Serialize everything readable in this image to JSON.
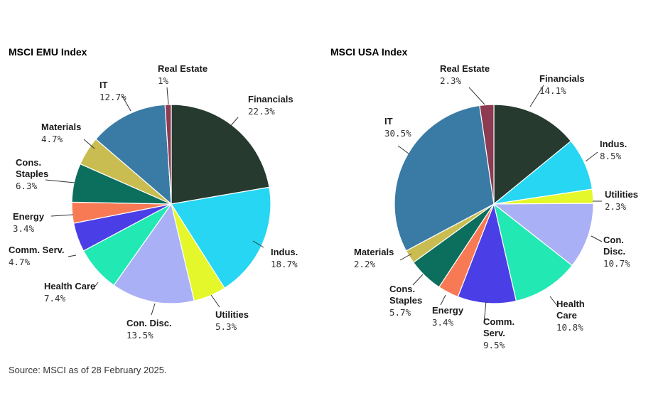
{
  "chart_data": [
    {
      "type": "pie",
      "title": "MSCI EMU Index",
      "slices": [
        {
          "name": "Financials",
          "lines": [
            "Financials"
          ],
          "value": 22.3,
          "label": "22.3%",
          "color": "#263a30"
        },
        {
          "name": "Indus.",
          "lines": [
            "Indus."
          ],
          "value": 18.7,
          "label": "18.7%",
          "color": "#26d6f2"
        },
        {
          "name": "Utilities",
          "lines": [
            "Utilities"
          ],
          "value": 5.3,
          "label": "5.3%",
          "color": "#e4f72a"
        },
        {
          "name": "Con. Disc.",
          "lines": [
            "Con. Disc."
          ],
          "value": 13.5,
          "label": "13.5%",
          "color": "#aab0f6"
        },
        {
          "name": "Health Care",
          "lines": [
            "Health Care"
          ],
          "value": 7.4,
          "label": "7.4%",
          "color": "#22e8b4"
        },
        {
          "name": "Comm. Serv.",
          "lines": [
            "Comm. Serv."
          ],
          "value": 4.7,
          "label": "4.7%",
          "color": "#4a3ee6"
        },
        {
          "name": "Energy",
          "lines": [
            "Energy"
          ],
          "value": 3.4,
          "label": "3.4%",
          "color": "#f87a55"
        },
        {
          "name": "Cons. Staples",
          "lines": [
            "Cons.",
            "Staples"
          ],
          "value": 6.3,
          "label": "6.3%",
          "color": "#0c6e5c"
        },
        {
          "name": "Materials",
          "lines": [
            "Materials"
          ],
          "value": 4.7,
          "label": "4.7%",
          "color": "#c9bd52"
        },
        {
          "name": "IT",
          "lines": [
            "IT"
          ],
          "value": 12.7,
          "label": "12.7%",
          "color": "#3a7ba6"
        },
        {
          "name": "Real Estate",
          "lines": [
            "Real Estate"
          ],
          "value": 1.0,
          "label": "1%",
          "color": "#8c3b52"
        }
      ]
    },
    {
      "type": "pie",
      "title": "MSCI USA Index",
      "slices": [
        {
          "name": "Financials",
          "lines": [
            "Financials"
          ],
          "value": 14.1,
          "label": "14.1%",
          "color": "#263a30"
        },
        {
          "name": "Indus.",
          "lines": [
            "Indus."
          ],
          "value": 8.5,
          "label": "8.5%",
          "color": "#26d6f2"
        },
        {
          "name": "Utilities",
          "lines": [
            "Utilities"
          ],
          "value": 2.3,
          "label": "2.3%",
          "color": "#e4f72a"
        },
        {
          "name": "Con. Disc.",
          "lines": [
            "Con.",
            "Disc."
          ],
          "value": 10.7,
          "label": "10.7%",
          "color": "#aab0f6"
        },
        {
          "name": "Health Care",
          "lines": [
            "Health",
            "Care"
          ],
          "value": 10.8,
          "label": "10.8%",
          "color": "#22e8b4"
        },
        {
          "name": "Comm. Serv.",
          "lines": [
            "Comm.",
            "Serv."
          ],
          "value": 9.5,
          "label": "9.5%",
          "color": "#4a3ee6"
        },
        {
          "name": "Energy",
          "lines": [
            "Energy"
          ],
          "value": 3.4,
          "label": "3.4%",
          "color": "#f87a55"
        },
        {
          "name": "Cons. Staples",
          "lines": [
            "Cons.",
            "Staples"
          ],
          "value": 5.7,
          "label": "5.7%",
          "color": "#0c6e5c"
        },
        {
          "name": "Materials",
          "lines": [
            "Materials"
          ],
          "value": 2.2,
          "label": "2.2%",
          "color": "#c9bd52"
        },
        {
          "name": "IT",
          "lines": [
            "IT"
          ],
          "value": 30.5,
          "label": "30.5%",
          "color": "#3a7ba6"
        },
        {
          "name": "Real Estate",
          "lines": [
            "Real Estate"
          ],
          "value": 2.3,
          "label": "2.3%",
          "color": "#8c3b52"
        }
      ]
    }
  ],
  "footer": {
    "source": "Source: MSCI as of 28 February 2025."
  }
}
